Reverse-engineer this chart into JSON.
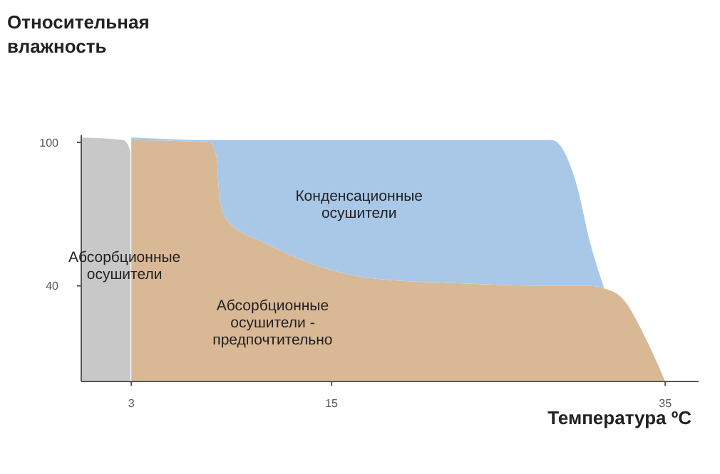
{
  "chart_data": {
    "type": "area",
    "xlabel": "Температура ºC",
    "ylabel": "Относительная\nвлажность",
    "xlim": [
      0,
      37
    ],
    "xticks": [
      3,
      15,
      35
    ],
    "ylim": [
      0,
      103
    ],
    "yticks": [
      40,
      100
    ],
    "grid": false,
    "stacked": true,
    "x": [
      0,
      2.5,
      2.8,
      2.95,
      3,
      7.7,
      8.1,
      8.3,
      8.8,
      11,
      13.9,
      17.6,
      22.9,
      28.2,
      29.7,
      30.5,
      31.3,
      32.4,
      33.9,
      35
    ],
    "series": [
      {
        "color": "#d9b896",
        "values": [
          null,
          null,
          null,
          null,
          101,
          100,
          94,
          76,
          67,
          58,
          49,
          43,
          41,
          40,
          40,
          40,
          39,
          35,
          17,
          0
        ]
      },
      {
        "color": "#a9c8e8",
        "values": [
          null,
          null,
          null,
          null,
          1,
          1,
          7,
          25,
          34,
          43,
          52,
          58,
          60,
          61,
          42,
          18,
          1,
          null,
          null,
          null
        ]
      },
      {
        "color": "#c8c8c8",
        "values": [
          102,
          101,
          99,
          96,
          null,
          null,
          null,
          null,
          null,
          null,
          null,
          null,
          null,
          null,
          null,
          null,
          null,
          null,
          null,
          null
        ]
      }
    ],
    "annotations": [
      "Конденсационные\nосушители",
      "Абсорбционные\nосушители",
      "Абсорбционные\nосушители -\nпредпочтительно"
    ]
  }
}
